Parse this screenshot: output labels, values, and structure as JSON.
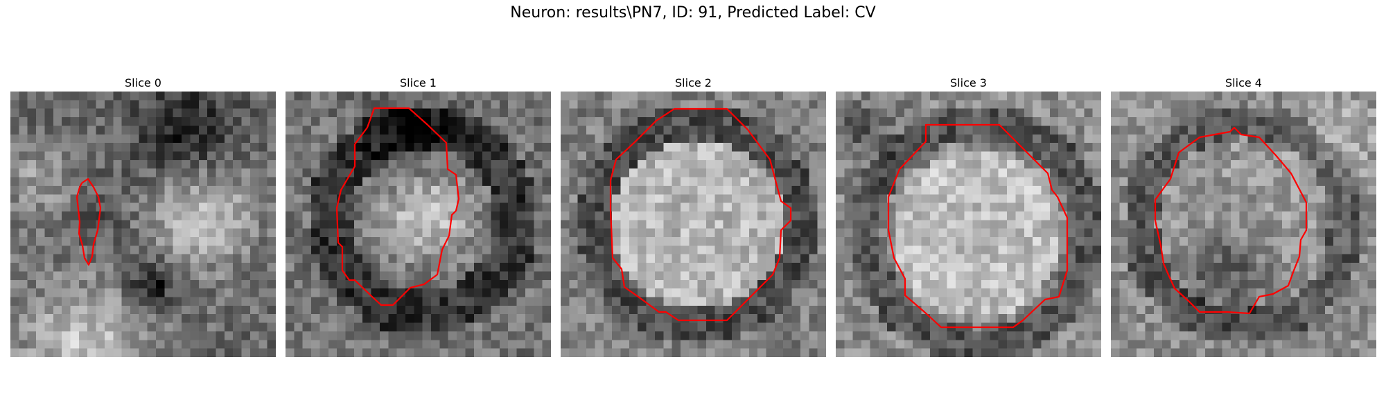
{
  "figure": {
    "title": "Neuron: results\\PN7, ID: 91, Predicted Label: CV",
    "contour_color": "#ff0000",
    "colormap": "gray",
    "slices": [
      {
        "label": "Slice 0"
      },
      {
        "label": "Slice 1"
      },
      {
        "label": "Slice 2"
      },
      {
        "label": "Slice 3"
      },
      {
        "label": "Slice 4"
      }
    ]
  }
}
